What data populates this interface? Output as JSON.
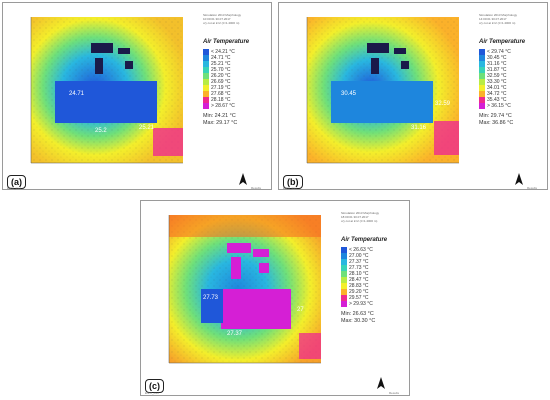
{
  "colors": {
    "scale_a": [
      "#3a1fc2",
      "#1f57d9",
      "#1e86dd",
      "#29b7e0",
      "#38d3b8",
      "#6fe07a",
      "#b8ec44",
      "#f3ef2b",
      "#fbb12a",
      "#f76420",
      "#ef2a8e",
      "#d51fd5"
    ],
    "scale_c": [
      "#3a1fc2",
      "#1f57d9",
      "#1e86dd",
      "#29b7e0",
      "#38d3b8",
      "#6fe07a",
      "#b8ec44",
      "#f3ef2b",
      "#fbb12a",
      "#f76420",
      "#ef2a8e",
      "#d51fd5"
    ]
  },
  "panels": [
    {
      "id": "a",
      "tag": "(a)",
      "info": [
        "Simulation 2013 Morphology",
        "10:00:01 30.07.2017",
        "x/y cut at k=2 (z=1.4000 m)"
      ],
      "legend_title": "Air Temperature",
      "legend_labels": [
        "< 24.21 °C",
        "24.71 °C",
        "25.21 °C",
        "25.70 °C",
        "26.20 °C",
        "26.69 °C",
        "27.19 °C",
        "27.68 °C",
        "28.18 °C",
        "> 28.67 °C"
      ],
      "min": "Min: 24.21 °C",
      "max": "Max: 29.17 °C",
      "values": [
        {
          "text": "24.71",
          "dark": false
        },
        {
          "text": "25.2",
          "dark": false
        },
        {
          "text": "25.21",
          "dark": false
        }
      ],
      "footer_left": "ENVI_met",
      "footer_right": "Results"
    },
    {
      "id": "b",
      "tag": "(b)",
      "info": [
        "Simulation 2013 Morphology",
        "14:00:01 30.07.2017",
        "x/y cut at k=2 (z=1.4000 m)"
      ],
      "legend_title": "Air Temperature",
      "legend_labels": [
        "< 29.74 °C",
        "30.45 °C",
        "31.16 °C",
        "31.87 °C",
        "32.59 °C",
        "33.30 °C",
        "34.01 °C",
        "34.72 °C",
        "35.43 °C",
        "> 36.15 °C"
      ],
      "min": "Min: 29.74 °C",
      "max": "Max: 36.86 °C",
      "values": [
        {
          "text": "30.45",
          "dark": false
        },
        {
          "text": "32.59",
          "dark": false
        },
        {
          "text": "31.16",
          "dark": false
        }
      ],
      "footer_left": "ENVI_met",
      "footer_right": "Results"
    },
    {
      "id": "c",
      "tag": "(c)",
      "info": [
        "Simulation 2013 Morphology",
        "18:00:01 30.07.2017",
        "x/y cut at k=2 (z=1.4000 m)"
      ],
      "legend_title": "Air Temperature",
      "legend_labels": [
        "< 26.63 °C",
        "27.00 °C",
        "27.37 °C",
        "27.73 °C",
        "28.10 °C",
        "28.47 °C",
        "28.83 °C",
        "29.20 °C",
        "29.57 °C",
        "> 29.93 °C"
      ],
      "min": "Min: 26.63 °C",
      "max": "Max: 30.30 °C",
      "values": [
        {
          "text": "27.73",
          "dark": false
        },
        {
          "text": "27.37",
          "dark": false
        },
        {
          "text": "27",
          "dark": false
        }
      ],
      "footer_left": "ENVI_met",
      "footer_right": "Results"
    }
  ]
}
